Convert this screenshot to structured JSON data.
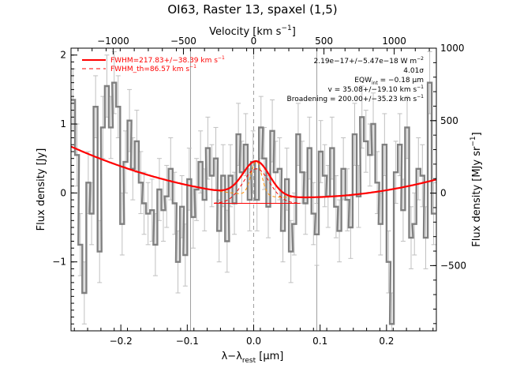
{
  "chart_data": {
    "type": "line",
    "title": "OI63, Raster 13, spaxel (1,5)",
    "xlabel": "λ−λ",
    "xlabel_sub": "rest",
    "xlabel_unit": " [μm]",
    "ylabel": "Flux density [Jy]",
    "top_axis_label": "Velocity [km s",
    "top_axis_label_sup": "−1",
    "top_axis_label_end": "]",
    "right_axis_label": "Flux density [MJy sr",
    "right_axis_label_sup": "−1",
    "right_axis_label_end": "]",
    "xlim": [
      -0.275,
      0.275
    ],
    "ylim": [
      -2.0,
      2.1
    ],
    "top_xlim": [
      -1300,
      1300
    ],
    "right_ylim": [
      -950,
      1000
    ],
    "x_ticks": [
      -0.2,
      -0.1,
      0.0,
      0.1,
      0.2
    ],
    "x_tick_labels": [
      "−0.2",
      "−0.1",
      "0.0",
      "0.1",
      "0.2"
    ],
    "y_ticks": [
      -1,
      0,
      1,
      2
    ],
    "y_tick_labels": [
      "−1",
      "0",
      "1",
      "2"
    ],
    "top_ticks": [
      -1000,
      -500,
      0,
      500,
      1000
    ],
    "top_tick_labels": [
      "−1000",
      "−500",
      "0",
      "500",
      "1000"
    ],
    "right_ticks": [
      -500,
      0,
      500,
      1000
    ],
    "right_tick_labels": [
      "−500",
      "0",
      "500",
      "1000"
    ],
    "vertical_lines": [
      -0.095,
      0.0,
      0.095
    ],
    "legend": {
      "fwhm": "FWHM=217.83+/−38.39 km s",
      "fwhm_sup": "−1",
      "fwhm_th": "FWHM_th=86.57 km s",
      "fwhm_th_sup": "−1"
    },
    "annotations": {
      "line1": "2.19e−17+/−5.47e−18 W m",
      "line1_sup": "−2",
      "line2": "4.01σ",
      "line3": "EQW",
      "line3_sub": "int",
      "line3_end": " = −0.18 μm",
      "line4": "v = 35.08+/−19.10 km s",
      "line4_sup": "−1",
      "line5": "Broadening = 200.00+/−35.23 km s",
      "line5_sup": "−1"
    },
    "spectrum": {
      "x": [
        -0.272,
        -0.266,
        -0.261,
        -0.255,
        -0.249,
        -0.244,
        -0.238,
        -0.232,
        -0.227,
        -0.221,
        -0.215,
        -0.21,
        -0.204,
        -0.198,
        -0.193,
        -0.187,
        -0.182,
        -0.176,
        -0.17,
        -0.165,
        -0.159,
        -0.153,
        -0.148,
        -0.142,
        -0.136,
        -0.131,
        -0.125,
        -0.119,
        -0.114,
        -0.108,
        -0.103,
        -0.097,
        -0.091,
        -0.086,
        -0.08,
        -0.074,
        -0.069,
        -0.063,
        -0.057,
        -0.052,
        -0.046,
        -0.04,
        -0.035,
        -0.029,
        -0.023,
        -0.018,
        -0.012,
        -0.006,
        -0.001,
        0.005,
        0.011,
        0.016,
        0.022,
        0.028,
        0.033,
        0.039,
        0.044,
        0.05,
        0.056,
        0.061,
        0.067,
        0.073,
        0.078,
        0.084,
        0.09,
        0.095,
        0.101,
        0.107,
        0.112,
        0.118,
        0.124,
        0.129,
        0.135,
        0.141,
        0.146,
        0.152,
        0.158,
        0.163,
        0.169,
        0.175,
        0.18,
        0.186,
        0.191,
        0.197,
        0.203,
        0.208,
        0.214,
        0.22,
        0.225,
        0.231,
        0.237,
        0.242,
        0.248,
        0.254,
        0.259,
        0.265,
        0.271
      ],
      "y": [
        1.35,
        0.55,
        -0.75,
        -1.45,
        0.15,
        -0.3,
        1.25,
        -0.85,
        0.95,
        1.55,
        0.95,
        1.6,
        1.25,
        -0.45,
        0.45,
        1.05,
        0.35,
        0.75,
        0.15,
        -0.15,
        -0.3,
        -0.25,
        -0.75,
        0.05,
        -0.25,
        -0.05,
        0.35,
        -0.15,
        -1.0,
        -0.2,
        -0.9,
        0.2,
        -0.35,
        0.05,
        0.45,
        -0.1,
        0.65,
        0.25,
        0.5,
        -0.55,
        0.25,
        -0.7,
        0.25,
        -0.15,
        0.85,
        0.3,
        0.7,
        -0.1,
        0.45,
        -0.1,
        0.95,
        0.5,
        -0.2,
        0.9,
        0.3,
        0.35,
        -0.55,
        0.2,
        -0.85,
        -0.45,
        0.85,
        0.3,
        -0.15,
        0.65,
        -0.3,
        -0.6,
        0.6,
        0.25,
        -0.05,
        0.65,
        -0.2,
        -0.55,
        0.35,
        -0.1,
        -0.5,
        0.85,
        -0.05,
        1.1,
        0.75,
        0.55,
        1.0,
        0.15,
        -0.45,
        0.7,
        -1.0,
        -1.9,
        0.3,
        0.7,
        -0.25,
        0.95,
        -0.65,
        -0.45,
        0.35,
        0.25,
        -0.65,
        1.6,
        -0.3
      ],
      "err": 0.45
    },
    "baseline": {
      "c0": -0.065,
      "c1": 0.45,
      "c2": 6.2
    },
    "gaussian_fit": {
      "amplitude": 0.5,
      "center": 0.004,
      "sigma": 0.02
    },
    "gaussian_th": {
      "amplitude": 0.5,
      "center": 0.004,
      "sigma": 0.008
    },
    "colors": {
      "fit": "#ff0000",
      "th": "#ff8c00",
      "data": "#808080",
      "error": "#c0c0c0"
    }
  }
}
